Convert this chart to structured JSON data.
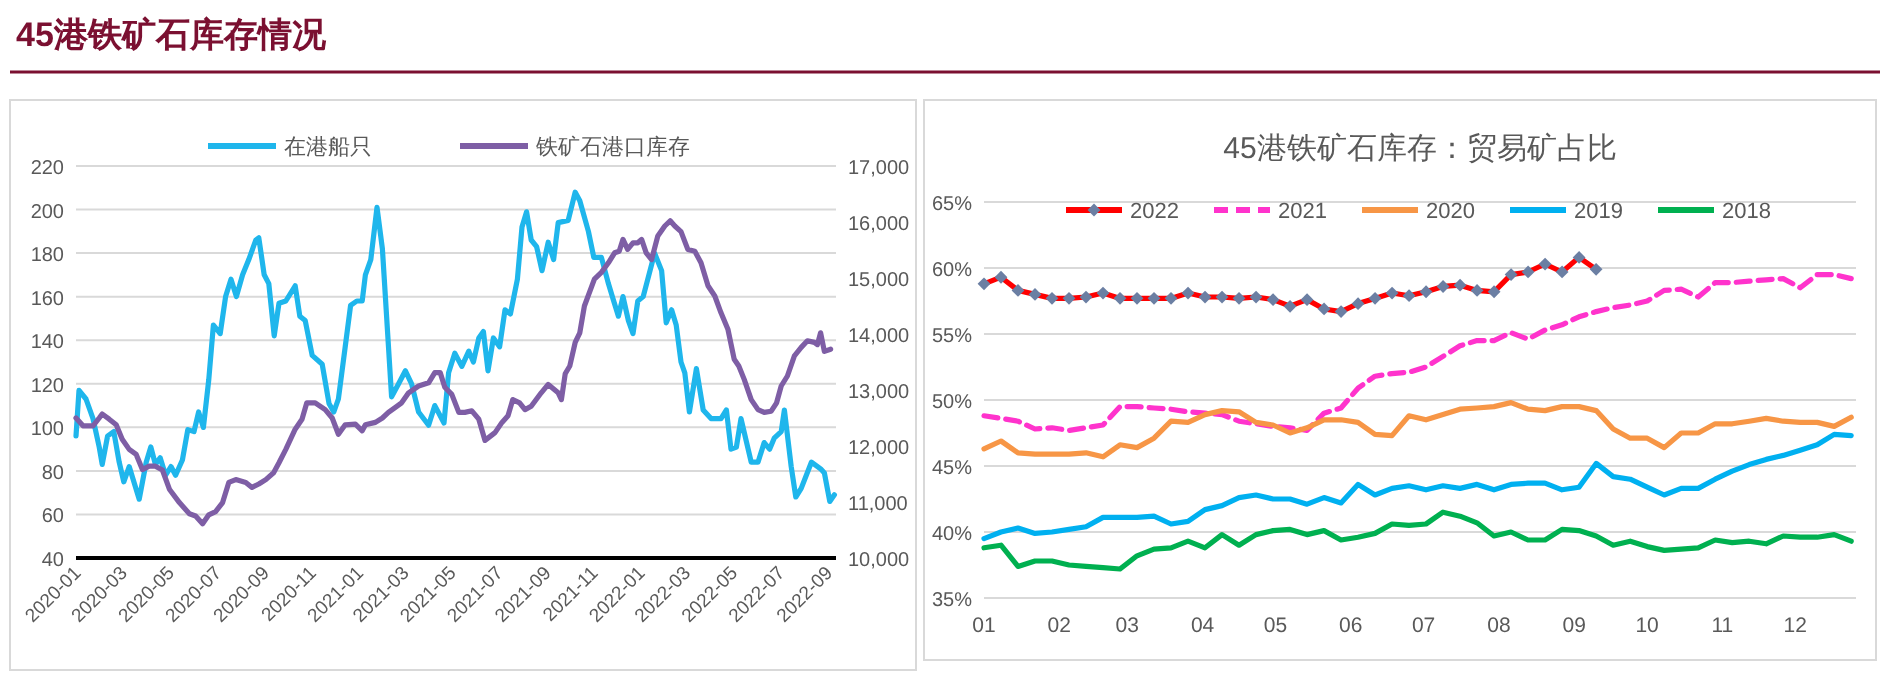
{
  "chart_data": [
    {
      "type": "line",
      "title": "45港铁矿石库存情况",
      "legend": "top",
      "grid": "y",
      "xlim": [
        "2020-01-01",
        "2022-09-12"
      ],
      "xticks": [
        {
          "value": "2020-01-01",
          "label": "2020-01"
        },
        {
          "value": "2020-03-01",
          "label": "2020-03"
        },
        {
          "value": "2020-05-01",
          "label": "2020-05"
        },
        {
          "value": "2020-07-01",
          "label": "2020-07"
        },
        {
          "value": "2020-09-01",
          "label": "2020-09"
        },
        {
          "value": "2020-11-01",
          "label": "2020-11"
        },
        {
          "value": "2021-01-01",
          "label": "2021-01"
        },
        {
          "value": "2021-03-01",
          "label": "2021-03"
        },
        {
          "value": "2021-05-01",
          "label": "2021-05"
        },
        {
          "value": "2021-07-01",
          "label": "2021-07"
        },
        {
          "value": "2021-09-01",
          "label": "2021-09"
        },
        {
          "value": "2021-11-01",
          "label": "2021-11"
        },
        {
          "value": "2022-01-01",
          "label": "2022-01"
        },
        {
          "value": "2022-03-01",
          "label": "2022-03"
        },
        {
          "value": "2022-05-01",
          "label": "2022-05"
        },
        {
          "value": "2022-07-01",
          "label": "2022-07"
        },
        {
          "value": "2022-09-01",
          "label": "2022-09"
        }
      ],
      "ylim": [
        40,
        220
      ],
      "yticks": [
        40,
        60,
        80,
        100,
        120,
        140,
        160,
        180,
        200,
        220
      ],
      "y2lim": [
        10000,
        17000
      ],
      "y2ticks": [
        {
          "value": 10000,
          "label": "10,000"
        },
        {
          "value": 11000,
          "label": "11,000"
        },
        {
          "value": 12000,
          "label": "12,000"
        },
        {
          "value": 13000,
          "label": "13,000"
        },
        {
          "value": 14000,
          "label": "14,000"
        },
        {
          "value": 15000,
          "label": "15,000"
        },
        {
          "value": 16000,
          "label": "16,000"
        },
        {
          "value": 17000,
          "label": "17,000"
        }
      ],
      "series": [
        {
          "name": "在港船只",
          "color": "#1fb6ec",
          "x": [
            "2020-01-01",
            "2020-01-05",
            "2020-01-14",
            "2020-01-23",
            "2020-01-31",
            "2020-02-04",
            "2020-02-11",
            "2020-02-19",
            "2020-02-26",
            "2020-03-03",
            "2020-03-10",
            "2020-03-23",
            "2020-04-01",
            "2020-04-07",
            "2020-04-13",
            "2020-04-19",
            "2020-04-26",
            "2020-05-03",
            "2020-05-09",
            "2020-05-18",
            "2020-05-25",
            "2020-06-02",
            "2020-06-08",
            "2020-06-14",
            "2020-06-21",
            "2020-06-27",
            "2020-07-06",
            "2020-07-13",
            "2020-07-20",
            "2020-07-27",
            "2020-08-04",
            "2020-08-12",
            "2020-08-21",
            "2020-08-25",
            "2020-09-01",
            "2020-09-07",
            "2020-09-14",
            "2020-09-20",
            "2020-09-29",
            "2020-10-11",
            "2020-10-17",
            "2020-10-24",
            "2020-11-02",
            "2020-11-15",
            "2020-11-24",
            "2020-11-30",
            "2020-12-06",
            "2020-12-15",
            "2020-12-22",
            "2020-12-30",
            "2021-01-06",
            "2021-01-10",
            "2021-01-17",
            "2021-01-25",
            "2021-02-01",
            "2021-02-13",
            "2021-02-22",
            "2021-03-03",
            "2021-03-11",
            "2021-03-20",
            "2021-04-02",
            "2021-04-10",
            "2021-04-22",
            "2021-04-28",
            "2021-05-06",
            "2021-05-15",
            "2021-05-24",
            "2021-05-30",
            "2021-06-06",
            "2021-06-12",
            "2021-06-18",
            "2021-06-25",
            "2021-07-03",
            "2021-07-10",
            "2021-07-17",
            "2021-07-26",
            "2021-08-01",
            "2021-08-07",
            "2021-08-13",
            "2021-08-20",
            "2021-08-27",
            "2021-09-04",
            "2021-09-11",
            "2021-09-17",
            "2021-09-30",
            "2021-10-09",
            "2021-10-15",
            "2021-10-26",
            "2021-11-02",
            "2021-11-12",
            "2021-11-21",
            "2021-11-27",
            "2021-12-04",
            "2021-12-10",
            "2021-12-17",
            "2021-12-23",
            "2021-12-29",
            "2022-01-05",
            "2022-01-11",
            "2022-01-20",
            "2022-01-29",
            "2022-02-04",
            "2022-02-11",
            "2022-02-17",
            "2022-02-23",
            "2022-02-28",
            "2022-03-06",
            "2022-03-15",
            "2022-03-24",
            "2022-04-03",
            "2022-04-16",
            "2022-04-23",
            "2022-04-29",
            "2022-05-06",
            "2022-05-12",
            "2022-05-25",
            "2022-06-03",
            "2022-06-11",
            "2022-06-18",
            "2022-06-24",
            "2022-07-03",
            "2022-07-07",
            "2022-07-16",
            "2022-07-22",
            "2022-07-29",
            "2022-08-11",
            "2022-08-23",
            "2022-08-28",
            "2022-09-04",
            "2022-09-10"
          ],
          "values": [
            96,
            117,
            113,
            104,
            91,
            83,
            96,
            98,
            84,
            75,
            82,
            67,
            84,
            91,
            83,
            86,
            78,
            82,
            78,
            85,
            99,
            98,
            107,
            100,
            122,
            147,
            143,
            160,
            168,
            160,
            170,
            177,
            186,
            187,
            170,
            166,
            142,
            157,
            158,
            165,
            151,
            149,
            133,
            129,
            111,
            107,
            113,
            137,
            156,
            158,
            158,
            170,
            177,
            201,
            182,
            114,
            120,
            126,
            120,
            107,
            101,
            110,
            102,
            125,
            134,
            128,
            135,
            130,
            141,
            144,
            126,
            141,
            137,
            154,
            152,
            168,
            192,
            199,
            186,
            183,
            172,
            185,
            177,
            194,
            195,
            208,
            204,
            190,
            178,
            178,
            166,
            159,
            151,
            160,
            149,
            143,
            158,
            160,
            168,
            180,
            172,
            148,
            154,
            147,
            130,
            125,
            107,
            127,
            108,
            104,
            104,
            108,
            90,
            91,
            104,
            84,
            84,
            93,
            90,
            95,
            98,
            108,
            82,
            68,
            72,
            84,
            81,
            79,
            66,
            69
          ]
        },
        {
          "name": "铁矿石港口库存",
          "color": "#7e5ea5",
          "axis": "y2",
          "x": [
            "2020-01-01",
            "2020-01-10",
            "2020-01-23",
            "2020-01-31",
            "2020-02-04",
            "2020-02-13",
            "2020-02-22",
            "2020-03-01",
            "2020-03-10",
            "2020-03-19",
            "2020-03-27",
            "2020-04-05",
            "2020-04-13",
            "2020-04-22",
            "2020-05-01",
            "2020-05-14",
            "2020-05-27",
            "2020-06-04",
            "2020-06-13",
            "2020-06-21",
            "2020-06-30",
            "2020-07-09",
            "2020-07-17",
            "2020-07-26",
            "2020-08-08",
            "2020-08-16",
            "2020-08-25",
            "2020-09-03",
            "2020-09-13",
            "2020-09-20",
            "2020-09-29",
            "2020-10-11",
            "2020-10-20",
            "2020-10-26",
            "2020-11-06",
            "2020-11-19",
            "2020-11-28",
            "2020-12-06",
            "2020-12-15",
            "2020-12-28",
            "2021-01-06",
            "2021-01-10",
            "2021-01-23",
            "2021-02-01",
            "2021-02-09",
            "2021-02-18",
            "2021-02-26",
            "2021-03-07",
            "2021-03-20",
            "2021-04-02",
            "2021-04-10",
            "2021-04-17",
            "2021-04-23",
            "2021-05-02",
            "2021-05-11",
            "2021-05-19",
            "2021-05-28",
            "2021-06-06",
            "2021-06-14",
            "2021-06-27",
            "2021-07-06",
            "2021-07-14",
            "2021-07-20",
            "2021-07-29",
            "2021-08-05",
            "2021-08-13",
            "2021-08-26",
            "2021-09-04",
            "2021-09-17",
            "2021-09-21",
            "2021-09-26",
            "2021-10-02",
            "2021-10-09",
            "2021-10-15",
            "2021-10-21",
            "2021-11-03",
            "2021-11-12",
            "2021-11-21",
            "2021-11-29",
            "2021-12-05",
            "2021-12-10",
            "2021-12-16",
            "2021-12-23",
            "2021-12-29",
            "2022-01-03",
            "2022-01-09",
            "2022-01-16",
            "2022-01-24",
            "2022-02-02",
            "2022-02-09",
            "2022-02-15",
            "2022-02-23",
            "2022-03-04",
            "2022-03-13",
            "2022-03-21",
            "2022-03-30",
            "2022-04-08",
            "2022-04-16",
            "2022-04-25",
            "2022-05-03",
            "2022-05-09",
            "2022-05-16",
            "2022-05-25",
            "2022-06-03",
            "2022-06-11",
            "2022-06-20",
            "2022-06-27",
            "2022-07-03",
            "2022-07-11",
            "2022-07-20",
            "2022-07-29",
            "2022-08-06",
            "2022-08-15",
            "2022-08-19",
            "2022-08-23",
            "2022-08-28",
            "2022-09-05"
          ],
          "values": [
            12500,
            12360,
            12360,
            12500,
            12570,
            12480,
            12380,
            12120,
            11940,
            11850,
            11580,
            11640,
            11640,
            11570,
            11230,
            10990,
            10790,
            10750,
            10610,
            10770,
            10830,
            10990,
            11350,
            11400,
            11350,
            11260,
            11320,
            11400,
            11520,
            11700,
            11940,
            12300,
            12480,
            12770,
            12770,
            12650,
            12500,
            12210,
            12380,
            12390,
            12270,
            12380,
            12420,
            12500,
            12600,
            12690,
            12770,
            12950,
            13070,
            13130,
            13310,
            13310,
            13050,
            12920,
            12600,
            12600,
            12630,
            12480,
            12100,
            12240,
            12420,
            12540,
            12830,
            12770,
            12650,
            12710,
            12950,
            13100,
            12950,
            12830,
            13290,
            13430,
            13850,
            14020,
            14500,
            14980,
            15100,
            15270,
            15450,
            15480,
            15690,
            15510,
            15630,
            15630,
            15690,
            15450,
            15330,
            15750,
            15930,
            16020,
            15930,
            15830,
            15510,
            15480,
            15270,
            14860,
            14680,
            14380,
            14080,
            13550,
            13430,
            13190,
            12830,
            12650,
            12600,
            12620,
            12770,
            13070,
            13250,
            13610,
            13760,
            13880,
            13850,
            13810,
            14020,
            13690,
            13730
          ]
        }
      ]
    },
    {
      "type": "line",
      "title": "45港铁矿石库存：贸易矿占比",
      "legend": "top",
      "grid": "y",
      "xlim": [
        "--01-01",
        "--12-26"
      ],
      "xticks": [
        {
          "value": "--01-01",
          "label": "01"
        },
        {
          "value": "--02-01",
          "label": "02"
        },
        {
          "value": "--03-01",
          "label": "03"
        },
        {
          "value": "--04-01",
          "label": "04"
        },
        {
          "value": "--05-01",
          "label": "05"
        },
        {
          "value": "--06-01",
          "label": "06"
        },
        {
          "value": "--07-01",
          "label": "07"
        },
        {
          "value": "--08-01",
          "label": "08"
        },
        {
          "value": "--09-01",
          "label": "09"
        },
        {
          "value": "--10-01",
          "label": "10"
        },
        {
          "value": "--11-01",
          "label": "11"
        },
        {
          "value": "--12-01",
          "label": "12"
        }
      ],
      "ylim": [
        35,
        65
      ],
      "yticks": [
        {
          "value": 35,
          "label": "35%"
        },
        {
          "value": 40,
          "label": "40%"
        },
        {
          "value": 45,
          "label": "45%"
        },
        {
          "value": 50,
          "label": "50%"
        },
        {
          "value": 55,
          "label": "55%"
        },
        {
          "value": 60,
          "label": "60%"
        },
        {
          "value": 65,
          "label": "65%"
        }
      ],
      "x": [
        "--01-01",
        "--01-08",
        "--01-15",
        "--01-22",
        "--01-29",
        "--02-05",
        "--02-12",
        "--02-19",
        "--02-26",
        "--03-05",
        "--03-12",
        "--03-19",
        "--03-26",
        "--04-02",
        "--04-09",
        "--04-16",
        "--04-23",
        "--04-30",
        "--05-07",
        "--05-14",
        "--05-21",
        "--05-28",
        "--06-04",
        "--06-11",
        "--06-18",
        "--06-25",
        "--07-02",
        "--07-09",
        "--07-16",
        "--07-23",
        "--07-30",
        "--08-06",
        "--08-13",
        "--08-20",
        "--08-27",
        "--09-03",
        "--09-10",
        "--09-17",
        "--09-24",
        "--10-01",
        "--10-08",
        "--10-15",
        "--10-22",
        "--10-29",
        "--11-05",
        "--11-12",
        "--11-19",
        "--11-26",
        "--12-03",
        "--12-10",
        "--12-17",
        "--12-24"
      ],
      "series": [
        {
          "name": "2022",
          "color": "#ff0000",
          "marker": "diamond",
          "x": [
            "--01-01",
            "--01-08",
            "--01-15",
            "--01-22",
            "--01-29",
            "--02-05",
            "--02-12",
            "--02-19",
            "--02-26",
            "--03-05",
            "--03-12",
            "--03-19",
            "--03-26",
            "--04-02",
            "--04-09",
            "--04-16",
            "--04-23",
            "--04-30",
            "--05-07",
            "--05-14",
            "--05-21",
            "--05-28",
            "--06-04",
            "--06-11",
            "--06-18",
            "--06-25",
            "--07-02",
            "--07-09",
            "--07-16",
            "--07-23",
            "--07-30",
            "--08-06",
            "--08-13",
            "--08-20",
            "--08-27",
            "--09-03",
            "--09-10"
          ],
          "values": [
            58.8,
            59.3,
            58.3,
            58.0,
            57.7,
            57.7,
            57.8,
            58.1,
            57.7,
            57.7,
            57.7,
            57.7,
            58.1,
            57.8,
            57.8,
            57.7,
            57.8,
            57.6,
            57.1,
            57.6,
            56.9,
            56.7,
            57.3,
            57.7,
            58.1,
            57.9,
            58.2,
            58.6,
            58.7,
            58.3,
            58.2,
            59.5,
            59.7,
            60.3,
            59.7,
            60.8,
            59.9
          ]
        },
        {
          "name": "2021",
          "color": "#ff33cc",
          "line_style": "dashed",
          "values": [
            48.8,
            48.6,
            48.4,
            47.8,
            47.9,
            47.7,
            47.9,
            48.1,
            49.5,
            49.5,
            49.4,
            49.3,
            49.1,
            49.0,
            48.9,
            48.4,
            48.2,
            48.0,
            47.9,
            47.7,
            49.0,
            49.4,
            50.9,
            51.8,
            52.0,
            52.1,
            52.5,
            53.3,
            54.1,
            54.5,
            54.5,
            55.1,
            54.6,
            55.3,
            55.7,
            56.3,
            56.7,
            57.0,
            57.2,
            57.5,
            58.3,
            58.4,
            57.8,
            58.9,
            58.9,
            59.0,
            59.1,
            59.2,
            58.5,
            59.5,
            59.5,
            59.2
          ]
        },
        {
          "name": "2020",
          "color": "#f79646",
          "values": [
            46.3,
            46.9,
            46.0,
            45.9,
            45.9,
            45.9,
            46.0,
            45.7,
            46.6,
            46.4,
            47.1,
            48.4,
            48.3,
            48.9,
            49.2,
            49.1,
            48.3,
            48.1,
            47.5,
            47.9,
            48.5,
            48.5,
            48.3,
            47.4,
            47.3,
            48.8,
            48.5,
            48.9,
            49.3,
            49.4,
            49.5,
            49.8,
            49.3,
            49.2,
            49.5,
            49.5,
            49.2,
            47.8,
            47.1,
            47.1,
            46.4,
            47.5,
            47.5,
            48.2,
            48.2,
            48.4,
            48.6,
            48.4,
            48.3,
            48.3,
            48.0,
            48.7
          ]
        },
        {
          "name": "2019",
          "color": "#00b0f0",
          "values": [
            39.5,
            40.0,
            40.3,
            39.9,
            40.0,
            40.2,
            40.4,
            41.1,
            41.1,
            41.1,
            41.2,
            40.6,
            40.8,
            41.7,
            42.0,
            42.6,
            42.8,
            42.5,
            42.5,
            42.1,
            42.6,
            42.2,
            43.6,
            42.8,
            43.3,
            43.5,
            43.2,
            43.5,
            43.3,
            43.6,
            43.2,
            43.6,
            43.7,
            43.7,
            43.2,
            43.4,
            45.2,
            44.2,
            44.0,
            43.4,
            42.8,
            43.3,
            43.3,
            44.0,
            44.6,
            45.1,
            45.5,
            45.8,
            46.2,
            46.6,
            47.4,
            47.3
          ]
        },
        {
          "name": "2018",
          "color": "#00b050",
          "values": [
            38.8,
            39.0,
            37.4,
            37.8,
            37.8,
            37.5,
            37.4,
            37.3,
            37.2,
            38.2,
            38.7,
            38.8,
            39.3,
            38.8,
            39.8,
            39.0,
            39.8,
            40.1,
            40.2,
            39.8,
            40.1,
            39.4,
            39.6,
            39.9,
            40.6,
            40.5,
            40.6,
            41.5,
            41.2,
            40.7,
            39.7,
            40.0,
            39.4,
            39.4,
            40.2,
            40.1,
            39.7,
            39.0,
            39.3,
            38.9,
            38.6,
            38.7,
            38.8,
            39.4,
            39.2,
            39.3,
            39.1,
            39.7,
            39.6,
            39.6,
            39.8,
            39.3
          ]
        }
      ]
    }
  ]
}
